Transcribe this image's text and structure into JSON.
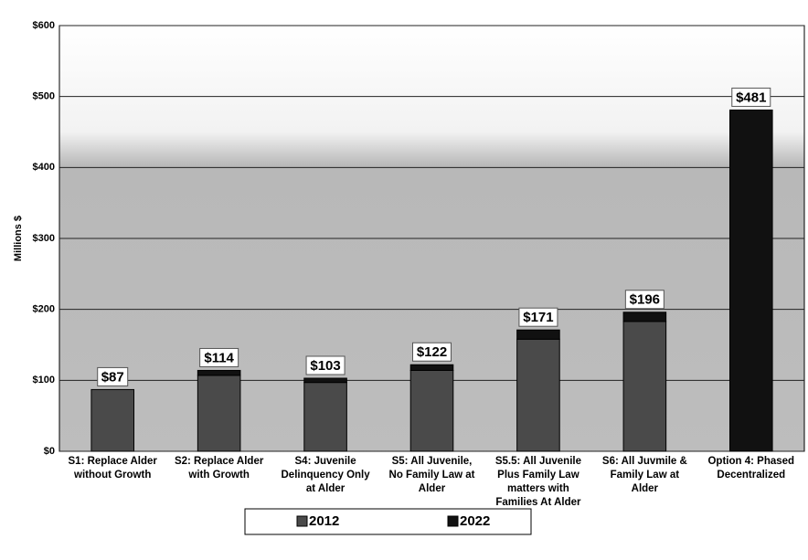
{
  "chart_data": {
    "type": "stacked_bar",
    "y_label": "Millions $",
    "categories": [
      "S1: Replace Alder without Growth",
      "S2: Replace Alder with Growth",
      "S4: Juvenile Delinquency Only at Alder",
      "S5: All Juvenile, No Family Law at Alder",
      "S5.5: All Juvenile Plus Family Law matters with Families At Alder",
      "S6: All Juvmile & Family Law at Alder",
      "Option 4: Phased Decentralized"
    ],
    "series": [
      {
        "name": "2012",
        "color": "#4a4a4a",
        "values": [
          87,
          107,
          97,
          114,
          158,
          183,
          0
        ]
      },
      {
        "name": "2022",
        "color": "#111111",
        "values": [
          0,
          7,
          6,
          8,
          13,
          13,
          481
        ]
      }
    ],
    "totals": [
      87,
      114,
      103,
      122,
      171,
      196,
      481
    ],
    "total_labels": [
      "$87",
      "$114",
      "$103",
      "$122",
      "$171",
      "$196",
      "$481"
    ],
    "ylim": [
      0,
      600
    ],
    "yticks": [
      {
        "value": 0,
        "label": "$0"
      },
      {
        "value": 100,
        "label": "$100"
      },
      {
        "value": 200,
        "label": "$200"
      },
      {
        "value": 300,
        "label": "$300"
      },
      {
        "value": 400,
        "label": "$400"
      },
      {
        "value": 500,
        "label": "$500"
      },
      {
        "value": 600,
        "label": "$600"
      }
    ],
    "grid": true,
    "legend": "bottom"
  }
}
